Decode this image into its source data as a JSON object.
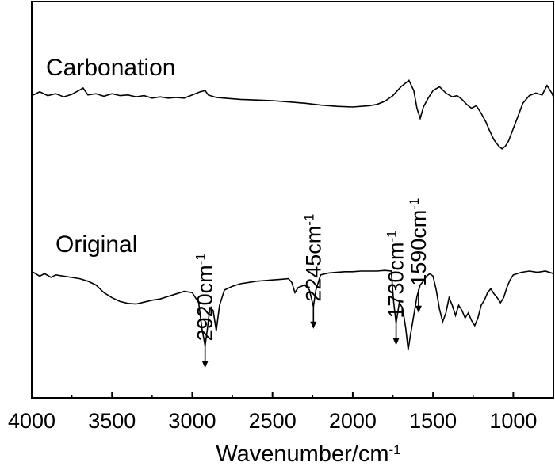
{
  "chart_data": {
    "type": "line",
    "title": "",
    "xlabel": "Wavenumber/cm",
    "xlabel_superscript": "-1",
    "ylabel": "",
    "xlim": [
      4000,
      750
    ],
    "x_reversed": true,
    "x_ticks": [
      4000,
      3500,
      3000,
      2500,
      2000,
      1500,
      1000
    ],
    "y_ticks_shown": false,
    "grid": false,
    "legend": "none",
    "series": [
      {
        "name": "Carbonation",
        "offset": "upper",
        "points": [
          [
            3990,
            0.45
          ],
          [
            3950,
            0.7
          ],
          [
            3900,
            0.4
          ],
          [
            3850,
            0.55
          ],
          [
            3800,
            0.3
          ],
          [
            3750,
            0.5
          ],
          [
            3700,
            0.85
          ],
          [
            3680,
            1.0
          ],
          [
            3650,
            0.45
          ],
          [
            3600,
            0.55
          ],
          [
            3550,
            0.35
          ],
          [
            3500,
            0.55
          ],
          [
            3450,
            0.4
          ],
          [
            3400,
            0.45
          ],
          [
            3350,
            0.3
          ],
          [
            3300,
            0.4
          ],
          [
            3250,
            0.2
          ],
          [
            3200,
            0.3
          ],
          [
            3150,
            0.2
          ],
          [
            3100,
            0.25
          ],
          [
            3050,
            0.2
          ],
          [
            3000,
            0.45
          ],
          [
            2950,
            0.7
          ],
          [
            2920,
            0.8
          ],
          [
            2900,
            0.45
          ],
          [
            2850,
            0.25
          ],
          [
            2800,
            0.2
          ],
          [
            2700,
            0.1
          ],
          [
            2600,
            0.05
          ],
          [
            2500,
            0.0
          ],
          [
            2400,
            -0.1
          ],
          [
            2300,
            -0.2
          ],
          [
            2200,
            -0.35
          ],
          [
            2100,
            -0.45
          ],
          [
            2000,
            -0.5
          ],
          [
            1900,
            -0.4
          ],
          [
            1850,
            -0.3
          ],
          [
            1800,
            -0.05
          ],
          [
            1750,
            0.4
          ],
          [
            1700,
            1.1
          ],
          [
            1650,
            1.6
          ],
          [
            1620,
            0.8
          ],
          [
            1600,
            -0.6
          ],
          [
            1580,
            -1.4
          ],
          [
            1560,
            -0.5
          ],
          [
            1530,
            0.2
          ],
          [
            1500,
            0.8
          ],
          [
            1460,
            1.1
          ],
          [
            1420,
            0.6
          ],
          [
            1380,
            0.3
          ],
          [
            1350,
            0.4
          ],
          [
            1320,
            0.1
          ],
          [
            1290,
            -0.3
          ],
          [
            1260,
            -0.6
          ],
          [
            1230,
            -0.4
          ],
          [
            1200,
            -1.0
          ],
          [
            1170,
            -1.7
          ],
          [
            1150,
            -2.3
          ],
          [
            1120,
            -3.1
          ],
          [
            1090,
            -3.6
          ],
          [
            1070,
            -3.8
          ],
          [
            1050,
            -3.6
          ],
          [
            1030,
            -3.2
          ],
          [
            1000,
            -2.2
          ],
          [
            970,
            -1.2
          ],
          [
            940,
            -0.2
          ],
          [
            900,
            0.4
          ],
          [
            860,
            0.6
          ],
          [
            820,
            0.45
          ],
          [
            790,
            1.2
          ],
          [
            760,
            0.6
          ],
          [
            750,
            0.3
          ]
        ]
      },
      {
        "name": "Original",
        "offset": "lower",
        "points": [
          [
            3990,
            0.4
          ],
          [
            3950,
            0.1
          ],
          [
            3920,
            0.3
          ],
          [
            3880,
            0.0
          ],
          [
            3850,
            0.2
          ],
          [
            3800,
            0.1
          ],
          [
            3750,
            0.0
          ],
          [
            3700,
            -0.1
          ],
          [
            3650,
            -0.3
          ],
          [
            3600,
            -0.6
          ],
          [
            3550,
            -1.2
          ],
          [
            3500,
            -1.6
          ],
          [
            3450,
            -1.9
          ],
          [
            3400,
            -2.05
          ],
          [
            3350,
            -2.1
          ],
          [
            3300,
            -1.95
          ],
          [
            3250,
            -1.8
          ],
          [
            3200,
            -1.7
          ],
          [
            3150,
            -1.5
          ],
          [
            3100,
            -1.3
          ],
          [
            3050,
            -1.1
          ],
          [
            3000,
            -1.2
          ],
          [
            2960,
            -2.0
          ],
          [
            2940,
            -4.0
          ],
          [
            2920,
            -5.4
          ],
          [
            2905,
            -4.0
          ],
          [
            2890,
            -2.4
          ],
          [
            2870,
            -2.6
          ],
          [
            2850,
            -4.2
          ],
          [
            2830,
            -2.2
          ],
          [
            2800,
            -1.0
          ],
          [
            2750,
            -0.7
          ],
          [
            2700,
            -0.5
          ],
          [
            2650,
            -0.4
          ],
          [
            2600,
            -0.3
          ],
          [
            2550,
            -0.25
          ],
          [
            2500,
            -0.2
          ],
          [
            2450,
            -0.15
          ],
          [
            2400,
            -0.1
          ],
          [
            2380,
            -0.4
          ],
          [
            2360,
            -1.2
          ],
          [
            2340,
            -0.8
          ],
          [
            2300,
            -0.6
          ],
          [
            2270,
            -1.0
          ],
          [
            2245,
            -2.3
          ],
          [
            2230,
            -1.0
          ],
          [
            2200,
            0.2
          ],
          [
            2150,
            0.35
          ],
          [
            2100,
            0.4
          ],
          [
            2050,
            0.45
          ],
          [
            2000,
            0.45
          ],
          [
            1950,
            0.5
          ],
          [
            1900,
            0.5
          ],
          [
            1850,
            0.5
          ],
          [
            1800,
            0.55
          ],
          [
            1760,
            0.5
          ],
          [
            1745,
            -2.0
          ],
          [
            1730,
            -3.6
          ],
          [
            1720,
            -2.8
          ],
          [
            1710,
            -2.0
          ],
          [
            1690,
            -2.4
          ],
          [
            1670,
            -4.0
          ],
          [
            1655,
            -5.7
          ],
          [
            1640,
            -4.5
          ],
          [
            1620,
            -3.0
          ],
          [
            1600,
            -1.5
          ],
          [
            1580,
            -0.6
          ],
          [
            1560,
            -0.3
          ],
          [
            1540,
            0.1
          ],
          [
            1520,
            0.3
          ],
          [
            1500,
            0.1
          ],
          [
            1480,
            -1.0
          ],
          [
            1460,
            -2.5
          ],
          [
            1440,
            -3.5
          ],
          [
            1420,
            -2.8
          ],
          [
            1400,
            -1.6
          ],
          [
            1380,
            -2.2
          ],
          [
            1360,
            -3.0
          ],
          [
            1340,
            -2.2
          ],
          [
            1320,
            -2.6
          ],
          [
            1300,
            -3.2
          ],
          [
            1280,
            -2.8
          ],
          [
            1260,
            -3.4
          ],
          [
            1240,
            -3.8
          ],
          [
            1220,
            -3.2
          ],
          [
            1200,
            -2.2
          ],
          [
            1180,
            -1.8
          ],
          [
            1160,
            -1.2
          ],
          [
            1140,
            -0.9
          ],
          [
            1120,
            -1.3
          ],
          [
            1100,
            -1.6
          ],
          [
            1080,
            -2.0
          ],
          [
            1060,
            -1.6
          ],
          [
            1040,
            -0.8
          ],
          [
            1020,
            -0.2
          ],
          [
            1000,
            0.2
          ],
          [
            950,
            0.4
          ],
          [
            900,
            0.5
          ],
          [
            850,
            0.4
          ],
          [
            800,
            0.5
          ],
          [
            750,
            0.3
          ]
        ]
      }
    ],
    "annotations": [
      {
        "text": "2920cm",
        "sup": "-1",
        "x": 2920,
        "series": "Original"
      },
      {
        "text": "2245cm",
        "sup": "-1",
        "x": 2245,
        "series": "Original"
      },
      {
        "text": "1730cm",
        "sup": "-1",
        "x": 1730,
        "series": "Original"
      },
      {
        "text": "1590cm",
        "sup": "-1",
        "x": 1590,
        "series": "Original"
      }
    ]
  }
}
